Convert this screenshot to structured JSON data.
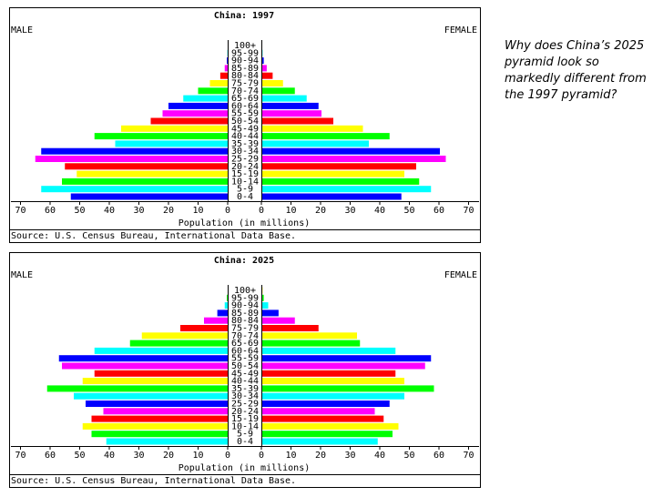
{
  "question": "Why does China’s 2025 pyramid look so markedly different from the 1997 pyramid?",
  "chart_data": [
    {
      "type": "pyramid",
      "title": "China: 1997",
      "categories": [
        "0-4",
        "5-9",
        "10-14",
        "15-19",
        "20-24",
        "25-29",
        "30-34",
        "35-39",
        "40-44",
        "45-49",
        "50-54",
        "55-59",
        "60-64",
        "65-69",
        "70-74",
        "75-79",
        "80-84",
        "85-89",
        "90-94",
        "95-99",
        "100+"
      ],
      "colors": [
        "#0000ff",
        "#00ffff",
        "#00ff00",
        "#ffff00",
        "#ff0000",
        "#ff00ff",
        "#0000ff",
        "#00ffff",
        "#00ff00",
        "#ffff00",
        "#ff0000",
        "#ff00ff",
        "#0000ff",
        "#00ffff",
        "#00ff00",
        "#ffff00",
        "#ff0000",
        "#ff00ff",
        "#0000ff",
        "#00ffff",
        "#00ff00"
      ],
      "series": [
        {
          "name": "MALE",
          "values": [
            53,
            63,
            56,
            51,
            55,
            65,
            63,
            38,
            45,
            36,
            26,
            22,
            20,
            15,
            10,
            6,
            2.5,
            1,
            0.3,
            0.1,
            0
          ]
        },
        {
          "name": "FEMALE",
          "values": [
            47,
            57,
            53,
            48,
            52,
            62,
            60,
            36,
            43,
            34,
            24,
            20,
            19,
            15,
            11,
            7,
            3.5,
            1.5,
            0.5,
            0.1,
            0
          ]
        }
      ],
      "xlim": [
        0,
        70
      ],
      "xticks": [
        0,
        10,
        20,
        30,
        40,
        50,
        60,
        70
      ],
      "xlabel": "Population (in millions)",
      "source": "Source: U.S. Census Bureau, International Data Base."
    },
    {
      "type": "pyramid",
      "title": "China: 2025",
      "categories": [
        "0-4",
        "5-9",
        "10-14",
        "15-19",
        "20-24",
        "25-29",
        "30-34",
        "35-39",
        "40-44",
        "45-49",
        "50-54",
        "55-59",
        "60-64",
        "65-69",
        "70-74",
        "75-79",
        "80-84",
        "85-89",
        "90-94",
        "95-99",
        "100+"
      ],
      "colors": [
        "#00ffff",
        "#00ff00",
        "#ffff00",
        "#ff0000",
        "#ff00ff",
        "#0000ff",
        "#00ffff",
        "#00ff00",
        "#ffff00",
        "#ff0000",
        "#ff00ff",
        "#0000ff",
        "#00ffff",
        "#00ff00",
        "#ffff00",
        "#ff0000",
        "#ff00ff",
        "#0000ff",
        "#00ffff",
        "#00ff00",
        "#ffff00"
      ],
      "series": [
        {
          "name": "MALE",
          "values": [
            41,
            46,
            49,
            46,
            42,
            48,
            52,
            61,
            49,
            45,
            56,
            57,
            45,
            33,
            29,
            16,
            8,
            3.5,
            1,
            0.3,
            0
          ]
        },
        {
          "name": "FEMALE",
          "values": [
            39,
            44,
            46,
            41,
            38,
            43,
            48,
            58,
            48,
            45,
            55,
            57,
            45,
            33,
            32,
            19,
            11,
            5.5,
            2,
            0.5,
            0.1
          ]
        }
      ],
      "xlim": [
        0,
        70
      ],
      "xticks": [
        0,
        10,
        20,
        30,
        40,
        50,
        60,
        70
      ],
      "xlabel": "Population (in millions)",
      "source": "Source: U.S. Census Bureau, International Data Base."
    }
  ]
}
